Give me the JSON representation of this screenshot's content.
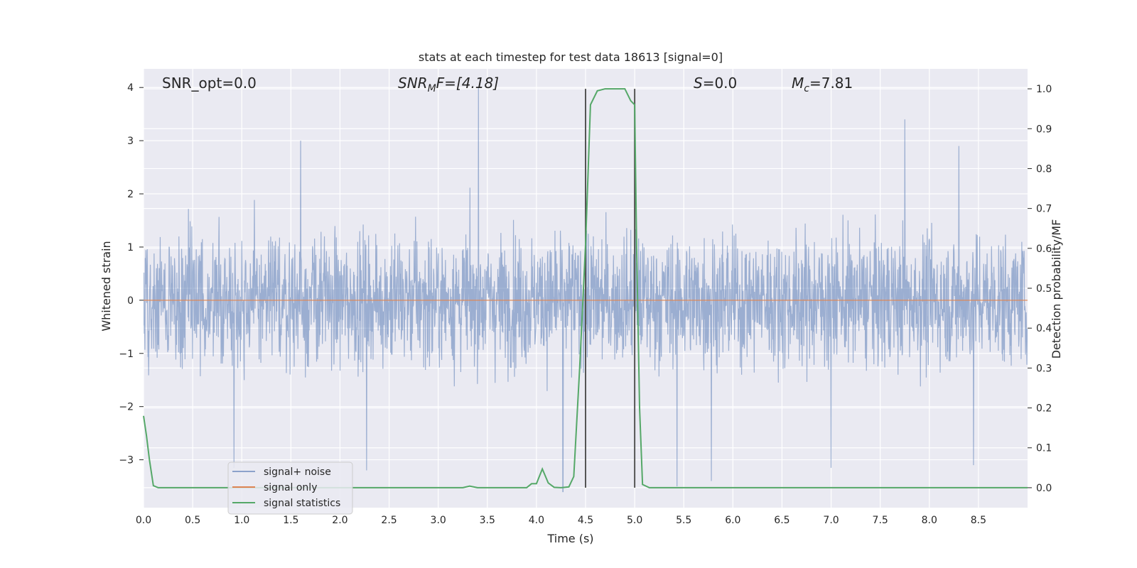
{
  "colors": {
    "background": "#eaeaf2",
    "grid": "#ffffff",
    "signal_noise": "#4c72b0",
    "signal_only": "#dd8452",
    "signal_statistics": "#55a868",
    "vline": "#555555"
  },
  "chart_data": {
    "type": "line",
    "title": "stats at each timestep for test data 18613 [signal=0]",
    "xlabel": "Time (s)",
    "ylabel_left": "Whitened strain",
    "ylabel_right": "Detection probability/MF",
    "xlim": [
      0.0,
      9.0
    ],
    "ylim_left": [
      -3.9,
      4.35
    ],
    "ylim_right": [
      -0.05,
      1.05
    ],
    "x_ticks": [
      "0.0",
      "0.5",
      "1.0",
      "1.5",
      "2.0",
      "2.5",
      "3.0",
      "3.5",
      "4.0",
      "4.5",
      "5.0",
      "5.5",
      "6.0",
      "6.5",
      "7.0",
      "7.5",
      "8.0",
      "8.5"
    ],
    "y_ticks_left": [
      "−3",
      "−2",
      "−1",
      "0",
      "1",
      "2",
      "3",
      "4"
    ],
    "y_ticks_right": [
      "0.0",
      "0.1",
      "0.2",
      "0.3",
      "0.4",
      "0.5",
      "0.6",
      "0.7",
      "0.8",
      "0.9",
      "1.0"
    ],
    "grid": true,
    "legend_position": "lower-left",
    "annotations": {
      "snr_opt": "SNR_opt=0.0",
      "snr_mf_main": "SNR",
      "snr_mf_sub": "M",
      "snr_mf_rest": "F=[4.18]",
      "s_main": "S",
      "s_rest": "=0.0",
      "mc_main": "M",
      "mc_sub": "c",
      "mc_rest": "=7.81"
    },
    "vertical_lines_x": [
      4.5,
      5.0
    ],
    "series": [
      {
        "name": "signal+ noise",
        "axis": "left",
        "style": "dense noise, amplitude roughly ±2.5 with peaks to 4.0 near 3.4 s",
        "peaks": [
          [
            3.41,
            4.0
          ],
          [
            7.75,
            3.4
          ],
          [
            1.6,
            3.0
          ],
          [
            8.3,
            2.9
          ],
          [
            0.92,
            -3.15
          ],
          [
            7.0,
            -3.15
          ],
          [
            8.45,
            -3.1
          ],
          [
            2.27,
            -3.2
          ],
          [
            5.43,
            -3.5
          ],
          [
            4.27,
            -3.6
          ],
          [
            5.78,
            -3.4
          ]
        ]
      },
      {
        "name": "signal only",
        "axis": "left",
        "x": [
          0.0,
          9.0
        ],
        "y": [
          0.0,
          0.0
        ]
      },
      {
        "name": "signal statistics",
        "axis": "right",
        "x": [
          0.0,
          0.03,
          0.06,
          0.1,
          0.15,
          0.5,
          1.0,
          1.5,
          2.0,
          2.5,
          3.0,
          3.25,
          3.32,
          3.4,
          3.5,
          3.9,
          3.95,
          4.0,
          4.06,
          4.12,
          4.18,
          4.25,
          4.33,
          4.38,
          4.44,
          4.5,
          4.55,
          4.62,
          4.7,
          4.8,
          4.9,
          4.96,
          5.0,
          5.02,
          5.05,
          5.08,
          5.15,
          5.5,
          6.0,
          7.0,
          8.0,
          9.0
        ],
        "y": [
          0.18,
          0.13,
          0.07,
          0.005,
          0.0,
          0.0,
          0.0,
          0.0,
          0.0,
          0.0,
          0.0,
          0.0,
          0.004,
          0.0,
          0.0,
          0.0,
          0.01,
          0.01,
          0.047,
          0.012,
          0.001,
          0.0,
          0.002,
          0.028,
          0.3,
          0.61,
          0.96,
          0.995,
          1.0,
          1.0,
          1.0,
          0.97,
          0.96,
          0.6,
          0.2,
          0.008,
          0.0,
          0.0,
          0.0,
          0.0,
          0.0,
          0.0
        ]
      }
    ]
  }
}
